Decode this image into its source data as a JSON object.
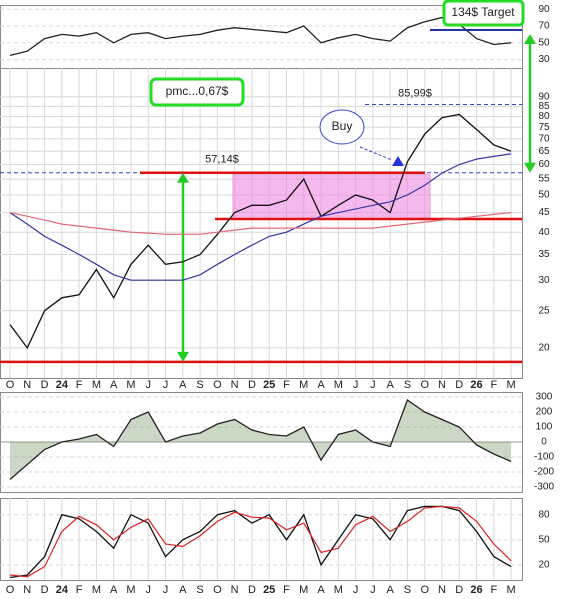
{
  "chart_data": [
    {
      "type": "line",
      "name": "rsi",
      "ylim": [
        20,
        95
      ],
      "yticks": [
        30,
        50,
        70,
        90
      ],
      "series": [
        {
          "name": "RSI",
          "color": "#222222",
          "values": [
            35,
            40,
            55,
            60,
            58,
            62,
            50,
            60,
            62,
            55,
            58,
            60,
            65,
            68,
            66,
            64,
            62,
            70,
            50,
            56,
            60,
            55,
            52,
            68,
            75,
            80,
            72,
            55,
            48,
            50
          ]
        }
      ]
    },
    {
      "type": "line",
      "name": "price",
      "log": true,
      "ylim": [
        16.7,
        107
      ],
      "yticks": [
        20,
        25,
        30,
        35,
        40,
        45,
        50,
        55,
        60,
        65,
        70,
        75,
        80,
        85,
        90
      ],
      "categories": [
        "O",
        "N",
        "D",
        "24",
        "F",
        "M",
        "A",
        "M",
        "J",
        "J",
        "A",
        "S",
        "O",
        "N",
        "D",
        "25",
        "F",
        "M",
        "A",
        "M",
        "J",
        "J",
        "A",
        "S",
        "O",
        "N",
        "D",
        "26",
        "F",
        "M"
      ],
      "series": [
        {
          "name": "Close",
          "color": "#111111",
          "values": [
            23,
            20,
            25,
            27,
            27.5,
            32,
            27,
            33,
            37,
            33,
            33.5,
            35,
            39.5,
            45,
            47,
            47,
            48.5,
            55,
            44,
            47,
            50,
            48.5,
            45,
            61,
            72,
            79.5,
            81,
            74,
            67.5,
            65
          ]
        },
        {
          "name": "MA50",
          "color": "#3535a5",
          "values": [
            45,
            42,
            39,
            37,
            35,
            33,
            31,
            30,
            30,
            30,
            30,
            31,
            33,
            35,
            37,
            39,
            40,
            42,
            44,
            45,
            46,
            47,
            48,
            50,
            53,
            57,
            60,
            62,
            63,
            64
          ]
        },
        {
          "name": "MA200",
          "color": "#e06878",
          "values": [
            45,
            44,
            43,
            42,
            41.5,
            41,
            40.5,
            40,
            39.8,
            39.5,
            39.5,
            39.5,
            40,
            40.5,
            41,
            41,
            41,
            41,
            41,
            41,
            41,
            41,
            41.5,
            42,
            42.5,
            43,
            43.5,
            44,
            44.5,
            45
          ]
        }
      ],
      "levels": [
        {
          "value": 57.14,
          "label": "57,14$"
        },
        {
          "value": 85.99,
          "label": "85,99$"
        }
      ],
      "support": [
        43.3,
        18.4
      ],
      "annotations": [
        "pmc...0,67$",
        "Buy",
        "134$ Target"
      ]
    },
    {
      "type": "line",
      "name": "cci",
      "ylim": [
        -333,
        333
      ],
      "yticks": [
        300,
        200,
        100,
        0,
        -100,
        -200,
        -300
      ],
      "series": [
        {
          "name": "CCI",
          "color": "#222222",
          "values": [
            -250,
            -150,
            -50,
            0,
            20,
            50,
            -30,
            150,
            200,
            0,
            40,
            60,
            120,
            150,
            80,
            50,
            40,
            100,
            -120,
            50,
            80,
            0,
            -30,
            280,
            200,
            150,
            100,
            -20,
            -80,
            -130
          ]
        }
      ]
    },
    {
      "type": "line",
      "name": "stoch",
      "ylim": [
        2,
        100
      ],
      "yticks": [
        20,
        50,
        80
      ],
      "categories": [
        "O",
        "N",
        "D",
        "24",
        "F",
        "M",
        "A",
        "M",
        "J",
        "J",
        "A",
        "S",
        "O",
        "N",
        "D",
        "25",
        "F",
        "M",
        "A",
        "M",
        "J",
        "J",
        "A",
        "S",
        "O",
        "N",
        "D",
        "26",
        "F",
        "M"
      ],
      "series": [
        {
          "name": "%K",
          "color": "#111111",
          "values": [
            5,
            8,
            30,
            80,
            75,
            60,
            40,
            80,
            70,
            30,
            50,
            60,
            80,
            85,
            70,
            80,
            50,
            80,
            20,
            50,
            80,
            75,
            50,
            85,
            90,
            90,
            85,
            60,
            30,
            18
          ]
        },
        {
          "name": "%D",
          "color": "#dd2222",
          "values": [
            8,
            6,
            18,
            60,
            78,
            68,
            50,
            65,
            75,
            45,
            42,
            55,
            72,
            83,
            77,
            76,
            62,
            70,
            35,
            40,
            68,
            78,
            60,
            72,
            88,
            90,
            88,
            72,
            45,
            25
          ]
        }
      ]
    }
  ]
}
